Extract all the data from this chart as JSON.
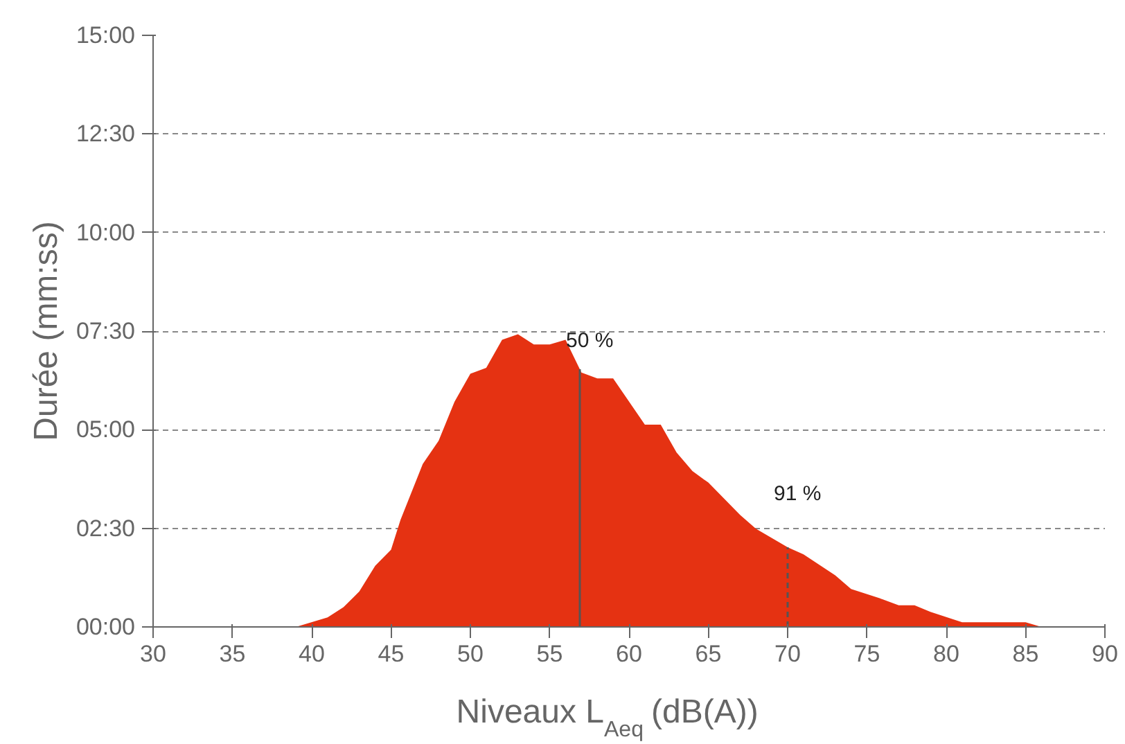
{
  "chart_data": {
    "type": "area",
    "xlabel": "Niveaux L$_{Aeq}$ (dB(A))",
    "ylabel": "Durée (mm:ss)",
    "x": [
      39,
      41,
      42,
      43,
      44,
      45,
      45.6,
      47,
      48,
      49,
      50,
      51,
      52,
      53,
      54,
      55,
      56,
      57,
      58,
      59,
      61,
      62,
      63,
      64,
      65,
      67,
      68,
      70,
      71,
      73,
      74,
      76,
      77,
      78,
      79,
      81,
      85,
      86
    ],
    "series": [
      {
        "color": "#e53212",
        "values": [
          0,
          0.24,
          0.5,
          0.9,
          1.55,
          1.96,
          2.72,
          4.13,
          4.72,
          5.71,
          6.42,
          6.57,
          7.28,
          7.42,
          7.16,
          7.16,
          7.28,
          6.45,
          6.3,
          6.3,
          5.13,
          5.13,
          4.42,
          3.95,
          3.66,
          2.84,
          2.49,
          2.02,
          1.84,
          1.31,
          0.96,
          0.7,
          0.55,
          0.55,
          0.38,
          0.12,
          0.12,
          0
        ]
      }
    ],
    "xlim": [
      30,
      90
    ],
    "xticks": [
      30,
      35,
      40,
      45,
      50,
      55,
      60,
      65,
      70,
      75,
      80,
      85,
      90
    ],
    "ylim": [
      0,
      15
    ],
    "yticks": [
      {
        "value": 0,
        "label": "00:00"
      },
      {
        "value": 2.5,
        "label": "02:30"
      },
      {
        "value": 5,
        "label": "05:00"
      },
      {
        "value": 7.5,
        "label": "07:30"
      },
      {
        "value": 10,
        "label": "10:00"
      },
      {
        "value": 12.5,
        "label": "12:30"
      },
      {
        "value": 15,
        "label": "15:00"
      }
    ],
    "grid": "y",
    "ref_lines": [
      {
        "axis": "x",
        "value": 56.9,
        "line_style": "solid",
        "color": "#555555"
      },
      {
        "axis": "x",
        "value": 70,
        "line_style": "dashed",
        "color": "#555555"
      }
    ],
    "annotations": [
      "50 %",
      "91 %"
    ]
  }
}
